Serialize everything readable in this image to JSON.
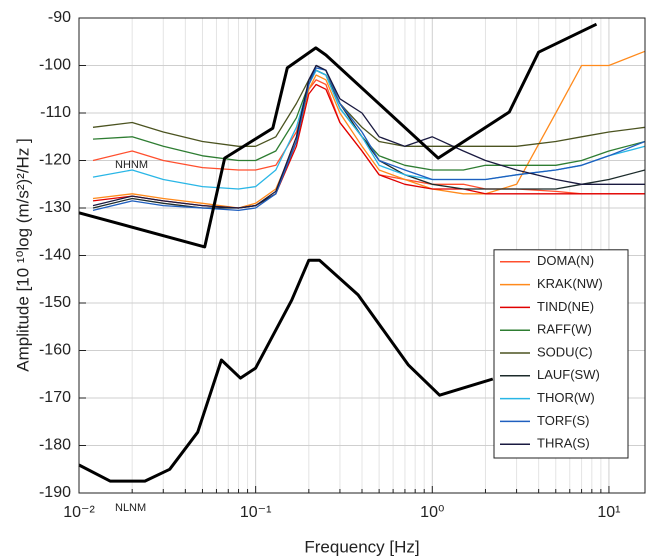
{
  "chart_data": {
    "type": "line",
    "x_label": "Frequency [Hz]",
    "y_label": "Amplitude [10 ¹⁰log (m/s²)²/Hz ]",
    "xscale": "log",
    "grid": true,
    "legend": "lower right",
    "xlim": [
      0.01,
      16
    ],
    "ylim": [
      -190,
      -90
    ],
    "xticks": [
      {
        "value": 0.01,
        "label": "10⁻²"
      },
      {
        "value": 0.1,
        "label": "10⁻¹"
      },
      {
        "value": 1,
        "label": "10⁰"
      },
      {
        "value": 10,
        "label": "10¹"
      }
    ],
    "xminorticks": [
      0.02,
      0.03,
      0.04,
      0.05,
      0.06,
      0.07,
      0.08,
      0.09,
      0.2,
      0.3,
      0.4,
      0.5,
      0.6,
      0.7,
      0.8,
      0.9,
      2,
      3,
      4,
      5,
      6,
      7,
      8,
      9
    ],
    "yticks": [
      -190,
      -180,
      -170,
      -160,
      -150,
      -140,
      -130,
      -120,
      -110,
      -100,
      -90
    ],
    "x": [
      0.012,
      0.02,
      0.03,
      0.05,
      0.08,
      0.1,
      0.13,
      0.17,
      0.2,
      0.22,
      0.25,
      0.3,
      0.4,
      0.5,
      0.7,
      1,
      1.5,
      2,
      3,
      5,
      7,
      10,
      16
    ],
    "series": [
      {
        "name": "DOMA(N)",
        "color": "#ff4f2e",
        "values": [
          -120,
          -118,
          -120,
          -121.5,
          -122,
          -122,
          -121,
          -114,
          -105,
          -103,
          -104,
          -112,
          -118,
          -123,
          -124,
          -125,
          -125,
          -126,
          -126,
          -126.5,
          -127,
          -127,
          -127
        ]
      },
      {
        "name": "KRAK(NW)",
        "color": "#ff8a1c",
        "values": [
          -128,
          -127,
          -128,
          -129,
          -130,
          -129,
          -126,
          -116,
          -105,
          -102,
          -103,
          -110,
          -117,
          -122,
          -124,
          -126,
          -127,
          -127,
          -125,
          -110,
          -100,
          -100,
          -97
        ]
      },
      {
        "name": "TIND(NE)",
        "color": "#e00000",
        "values": [
          -128.5,
          -127.5,
          -128.5,
          -129.5,
          -130,
          -129.5,
          -127,
          -117,
          -106,
          -104,
          -105,
          -112,
          -118,
          -123,
          -125,
          -126,
          -126,
          -127,
          -127,
          -127,
          -127,
          -127,
          -127
        ]
      },
      {
        "name": "RAFF(W)",
        "color": "#2e7d32",
        "values": [
          -115.5,
          -115,
          -117,
          -119,
          -120,
          -120,
          -118,
          -111,
          -104,
          -101,
          -102,
          -109,
          -115,
          -119,
          -121,
          -122,
          -122,
          -121,
          -121,
          -121,
          -120,
          -118,
          -116
        ]
      },
      {
        "name": "SODU(C)",
        "color": "#4b5320",
        "values": [
          -113,
          -112,
          -114,
          -116,
          -117,
          -117,
          -115,
          -108,
          -103,
          -101,
          -102,
          -108,
          -113,
          -116,
          -117,
          -117,
          -117,
          -117,
          -117,
          -116,
          -115,
          -114,
          -113
        ]
      },
      {
        "name": "LAUF(SW)",
        "color": "#1c2b2b",
        "values": [
          -130,
          -128,
          -129,
          -130,
          -130,
          -129.5,
          -127,
          -116,
          -104,
          -100,
          -101,
          -108,
          -115,
          -120,
          -123,
          -125,
          -126,
          -126,
          -126,
          -126,
          -125,
          -124,
          -122
        ]
      },
      {
        "name": "THOR(W)",
        "color": "#29b6e6",
        "values": [
          -123.5,
          -122,
          -124,
          -125.5,
          -126,
          -125.5,
          -122,
          -113,
          -104,
          -101,
          -102,
          -109,
          -115,
          -121,
          -123,
          -124,
          -124,
          -124,
          -123,
          -122,
          -121,
          -119,
          -117
        ]
      },
      {
        "name": "TORF(S)",
        "color": "#1f5fbf",
        "values": [
          -130.5,
          -128.5,
          -129.5,
          -130,
          -130.5,
          -130,
          -127,
          -116,
          -104,
          -100.5,
          -101,
          -108,
          -114,
          -120,
          -122,
          -124,
          -124,
          -124,
          -123,
          -122,
          -121,
          -119,
          -116
        ]
      },
      {
        "name": "THRA(S)",
        "color": "#1a1a40",
        "values": [
          -129.5,
          -127.5,
          -128.5,
          -129.5,
          -130,
          -129.5,
          -126.5,
          -115,
          -103,
          -100,
          -101,
          -107,
          -110,
          -115,
          -117,
          -115,
          -118,
          -120,
          -122,
          -124,
          -125,
          -125,
          -125
        ]
      }
    ],
    "reference_lines": [
      {
        "name": "NHNM",
        "color": "#000000",
        "x": [
          0.01,
          0.0515,
          0.0668,
          0.125,
          0.151,
          0.219,
          0.25,
          1.08,
          2.73,
          4.0,
          8.5
        ],
        "values": [
          -131,
          -138.2,
          -119.5,
          -113.2,
          -100.5,
          -96.3,
          -97.8,
          -119.5,
          -109.8,
          -97.2,
          -91.3
        ]
      },
      {
        "name": "NLNM",
        "color": "#000000",
        "x": [
          0.01,
          0.015,
          0.0236,
          0.0326,
          0.047,
          0.064,
          0.082,
          0.1,
          0.16,
          0.2,
          0.23,
          0.38,
          0.73,
          1.1,
          2.2
        ],
        "values": [
          -184.1,
          -187.5,
          -187.5,
          -185,
          -177.2,
          -162,
          -165.8,
          -163.7,
          -149.4,
          -141,
          -141,
          -148.3,
          -163,
          -169.4,
          -166
        ]
      }
    ]
  }
}
